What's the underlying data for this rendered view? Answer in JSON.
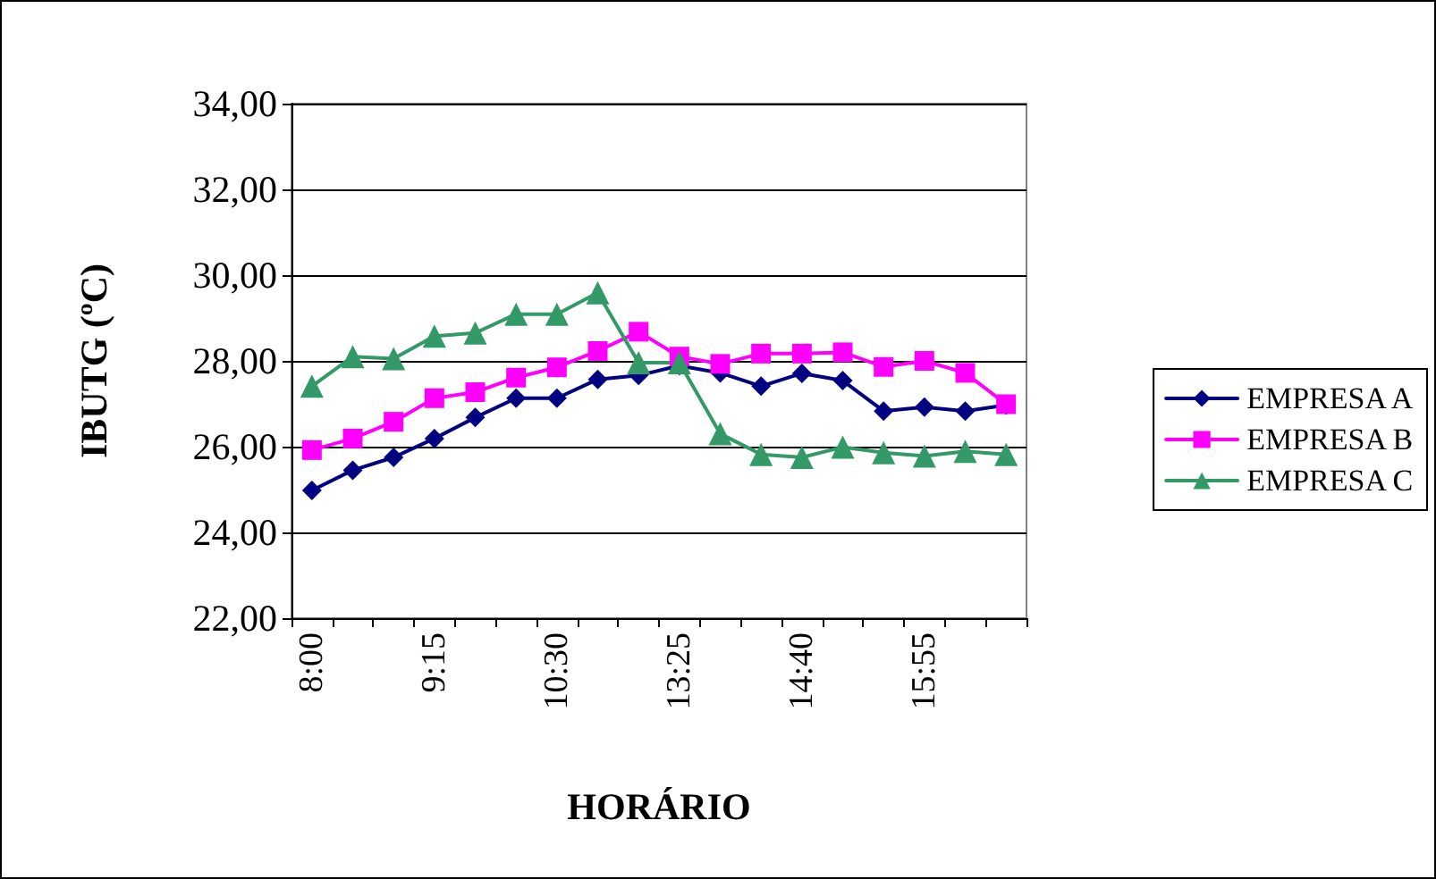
{
  "chart_data": {
    "type": "line",
    "xlabel": "HORÁRIO",
    "ylabel": "IBUTG (ºC)",
    "categories": [
      "8:00",
      null,
      null,
      "9:15",
      null,
      null,
      "10:30",
      null,
      null,
      "13:25",
      null,
      null,
      "14:40",
      null,
      null,
      "15:55",
      null,
      null
    ],
    "series": [
      {
        "name": "EMPRESA A",
        "color": "#000080",
        "marker": "diamond",
        "values": [
          24.98,
          25.45,
          25.75,
          26.19,
          26.68,
          27.13,
          27.13,
          27.57,
          27.66,
          27.89,
          27.72,
          27.41,
          27.71,
          27.54,
          26.83,
          26.92,
          26.83,
          26.97
        ]
      },
      {
        "name": "EMPRESA B",
        "color": "#ff00ff",
        "marker": "square",
        "values": [
          25.92,
          26.19,
          26.58,
          27.13,
          27.27,
          27.61,
          27.85,
          28.23,
          28.68,
          28.1,
          27.93,
          28.17,
          28.17,
          28.2,
          27.86,
          28.0,
          27.72,
          26.99
        ]
      },
      {
        "name": "EMPRESA C",
        "color": "#339966",
        "marker": "triangle",
        "values": [
          27.41,
          28.1,
          28.05,
          28.58,
          28.65,
          29.09,
          29.09,
          29.59,
          27.96,
          27.96,
          26.3,
          25.82,
          25.75,
          25.99,
          25.86,
          25.78,
          25.89,
          25.82
        ]
      }
    ],
    "ylim": [
      22,
      34
    ],
    "yticks": [
      {
        "value": 22,
        "label": "22,00"
      },
      {
        "value": 24,
        "label": "24,00"
      },
      {
        "value": 26,
        "label": "26,00"
      },
      {
        "value": 28,
        "label": "28,00"
      },
      {
        "value": 30,
        "label": "30,00"
      },
      {
        "value": 32,
        "label": "32,00"
      },
      {
        "value": 34,
        "label": "34,00"
      }
    ],
    "grid": "y",
    "legend": "right",
    "line_style": "solid"
  }
}
